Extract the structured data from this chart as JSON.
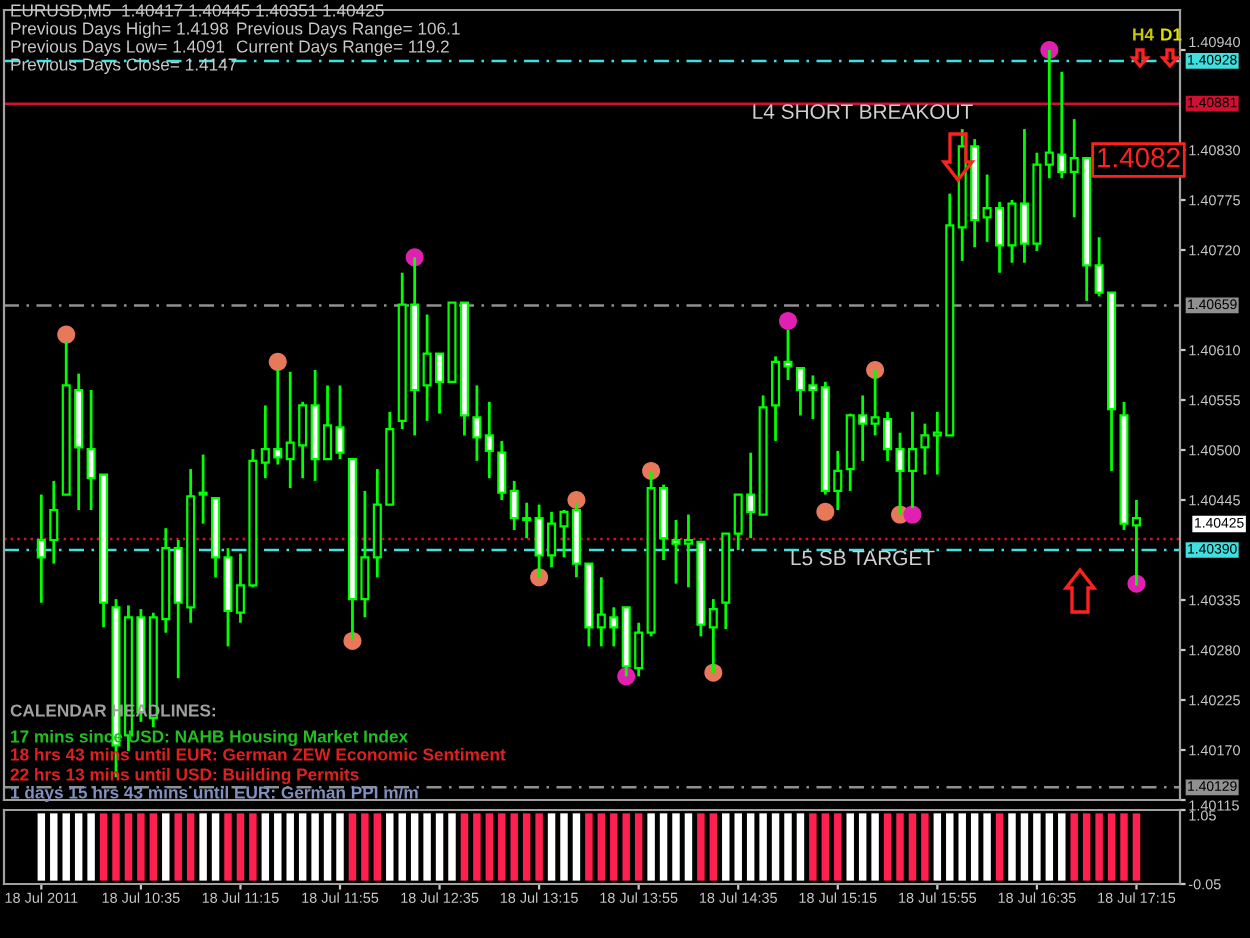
{
  "chart_data": [
    {
      "type": "candlestick",
      "title": "EURUSD,M5  1.40417 1.40445 1.40351 1.40425",
      "categories": [
        null,
        null,
        null,
        null,
        null,
        null,
        null,
        null,
        null,
        null,
        null,
        null,
        null,
        null,
        null,
        null,
        null,
        null,
        null,
        null,
        null,
        null,
        null,
        null,
        null,
        null,
        null,
        null,
        null,
        null,
        null,
        null,
        null,
        null,
        null,
        null,
        null,
        null,
        null,
        null,
        null,
        null,
        null,
        null,
        null,
        null,
        null,
        null,
        null,
        null,
        null,
        null,
        null,
        null,
        null,
        null,
        null,
        null,
        null,
        null,
        null,
        null,
        null,
        null,
        null,
        null,
        null,
        null,
        null,
        null,
        null,
        null,
        null,
        null,
        null,
        null,
        null,
        null,
        null,
        null,
        null,
        null,
        null,
        null,
        null,
        null,
        null,
        null,
        null
      ],
      "series": [
        {
          "type": "candlestick",
          "color": "#00ff00",
          "ohlc": [
            [
              1.40401,
              1.40451,
              1.40332,
              1.40382
            ],
            [
              1.40401,
              1.40466,
              1.40375,
              1.40434
            ],
            [
              1.40451,
              1.40619,
              1.40451,
              1.40571
            ],
            [
              1.40566,
              1.40584,
              1.40434,
              1.40503
            ],
            [
              1.40501,
              1.40566,
              1.40434,
              1.40469
            ],
            [
              1.40473,
              1.40473,
              1.40305,
              1.40332
            ],
            [
              1.40327,
              1.40336,
              1.4014,
              1.40175
            ],
            [
              1.40186,
              1.40329,
              1.40169,
              1.40316
            ],
            [
              1.40316,
              1.40325,
              1.40201,
              1.40212
            ],
            [
              1.40205,
              1.40321,
              1.40195,
              1.40316
            ],
            [
              1.40314,
              1.40414,
              1.40299,
              1.40392
            ],
            [
              1.40392,
              1.40401,
              1.40249,
              1.40332
            ],
            [
              1.40327,
              1.40479,
              1.4031,
              1.40449
            ],
            [
              1.40451,
              1.40495,
              1.40419,
              1.40453
            ],
            [
              1.40447,
              1.40447,
              1.4036,
              1.40382
            ],
            [
              1.40382,
              1.40392,
              1.40284,
              1.40323
            ],
            [
              1.40321,
              1.40386,
              1.4031,
              1.40351
            ],
            [
              1.40351,
              1.40501,
              1.40349,
              1.40488
            ],
            [
              1.40486,
              1.40549,
              1.40469,
              1.40501
            ],
            [
              1.40501,
              1.40588,
              1.40484,
              1.40492
            ],
            [
              1.4049,
              1.40586,
              1.40458,
              1.40508
            ],
            [
              1.40505,
              1.40553,
              1.40469,
              1.40549
            ],
            [
              1.40549,
              1.40588,
              1.40466,
              1.4049
            ],
            [
              1.4049,
              1.40571,
              1.4049,
              1.40527
            ],
            [
              1.40525,
              1.40571,
              1.4049,
              1.40497
            ],
            [
              1.4049,
              1.4049,
              1.40292,
              1.40336
            ],
            [
              1.40336,
              1.40455,
              1.40316,
              1.40382
            ],
            [
              1.40382,
              1.40479,
              1.4036,
              1.4044
            ],
            [
              1.4044,
              1.40542,
              1.4044,
              1.40523
            ],
            [
              1.40532,
              1.40695,
              1.40523,
              1.4066
            ],
            [
              1.4066,
              1.40712,
              1.40516,
              1.40566
            ],
            [
              1.40571,
              1.40649,
              1.40532,
              1.40606
            ],
            [
              1.40606,
              1.40606,
              1.4054,
              1.40575
            ],
            [
              1.40575,
              1.40662,
              1.40575,
              1.40662
            ],
            [
              1.40662,
              1.40662,
              1.40516,
              1.40538
            ],
            [
              1.40536,
              1.40571,
              1.40488,
              1.40514
            ],
            [
              1.40516,
              1.40553,
              1.40469,
              1.40499
            ],
            [
              1.40497,
              1.4051,
              1.40445,
              1.40453
            ],
            [
              1.40455,
              1.40466,
              1.40412,
              1.40425
            ],
            [
              1.40425,
              1.40442,
              1.40403,
              1.40423
            ],
            [
              1.40425,
              1.4044,
              1.4036,
              1.40384
            ],
            [
              1.40384,
              1.40432,
              1.40371,
              1.40419
            ],
            [
              1.40416,
              1.40434,
              1.40382,
              1.40432
            ],
            [
              1.40434,
              1.40442,
              1.4036,
              1.40375
            ],
            [
              1.40375,
              1.40375,
              1.40284,
              1.40305
            ],
            [
              1.40305,
              1.4036,
              1.40284,
              1.40319
            ],
            [
              1.40316,
              1.40327,
              1.40284,
              1.40305
            ],
            [
              1.40327,
              1.40327,
              1.40251,
              1.40262
            ],
            [
              1.4026,
              1.4031,
              1.40251,
              1.40299
            ],
            [
              1.40299,
              1.40477,
              1.40295,
              1.40458
            ],
            [
              1.40458,
              1.40462,
              1.40379,
              1.40403
            ],
            [
              1.40401,
              1.40423,
              1.40353,
              1.40397
            ],
            [
              1.40397,
              1.40429,
              1.40349,
              1.40401
            ],
            [
              1.40399,
              1.40399,
              1.40295,
              1.40308
            ],
            [
              1.40305,
              1.40336,
              1.40255,
              1.40325
            ],
            [
              1.40332,
              1.40408,
              1.40303,
              1.40408
            ],
            [
              1.40408,
              1.40451,
              1.4039,
              1.40451
            ],
            [
              1.40451,
              1.40497,
              1.40403,
              1.40432
            ],
            [
              1.40429,
              1.4056,
              1.40429,
              1.40547
            ],
            [
              1.40549,
              1.40603,
              1.4051,
              1.40597
            ],
            [
              1.40597,
              1.40632,
              1.40577,
              1.40592
            ],
            [
              1.4059,
              1.4059,
              1.40538,
              1.40566
            ],
            [
              1.40571,
              1.40582,
              1.40534,
              1.40566
            ],
            [
              1.40569,
              1.40575,
              1.40451,
              1.40455
            ],
            [
              1.40455,
              1.40499,
              1.40434,
              1.40477
            ],
            [
              1.40479,
              1.4054,
              1.40455,
              1.40538
            ],
            [
              1.40538,
              1.4056,
              1.40488,
              1.40529
            ],
            [
              1.40529,
              1.40588,
              1.40516,
              1.40536
            ],
            [
              1.40534,
              1.40542,
              1.40488,
              1.40501
            ],
            [
              1.40501,
              1.40519,
              1.40429,
              1.40477
            ],
            [
              1.40477,
              1.40542,
              1.40436,
              1.40501
            ],
            [
              1.40503,
              1.40529,
              1.40473,
              1.40516
            ],
            [
              1.40516,
              1.40542,
              1.40473,
              1.40519
            ],
            [
              1.40516,
              1.40782,
              1.40516,
              1.40747
            ],
            [
              1.40745,
              1.40853,
              1.40708,
              1.40834
            ],
            [
              1.40834,
              1.40842,
              1.40723,
              1.40753
            ],
            [
              1.40756,
              1.40803,
              1.40729,
              1.40766
            ],
            [
              1.40766,
              1.40773,
              1.40695,
              1.40725
            ],
            [
              1.40725,
              1.40775,
              1.40706,
              1.40771
            ],
            [
              1.40771,
              1.40853,
              1.40706,
              1.40727
            ],
            [
              1.40727,
              1.40827,
              1.40719,
              1.40814
            ],
            [
              1.40814,
              1.4094,
              1.40799,
              1.40827
            ],
            [
              1.40825,
              1.40916,
              1.40799,
              1.40806
            ],
            [
              1.40806,
              1.40864,
              1.40756,
              1.40821
            ],
            [
              1.40821,
              1.40821,
              1.40664,
              1.40703
            ],
            [
              1.40703,
              1.40734,
              1.40669,
              1.40673
            ],
            [
              1.40673,
              1.40673,
              1.40477,
              1.40545
            ],
            [
              1.40538,
              1.40553,
              1.40412,
              1.40419
            ],
            [
              1.40417,
              1.40445,
              1.40351,
              1.40425
            ]
          ]
        },
        {
          "type": "scatter",
          "color": "#e8785a",
          "marker": "circle",
          "values": [
            null,
            null,
            1.40627,
            null,
            null,
            null,
            null,
            null,
            null,
            null,
            null,
            null,
            null,
            null,
            null,
            null,
            null,
            null,
            null,
            1.40597,
            null,
            null,
            null,
            null,
            null,
            1.4029,
            null,
            null,
            null,
            null,
            null,
            null,
            null,
            null,
            null,
            null,
            null,
            null,
            null,
            null,
            1.4036,
            null,
            null,
            1.40445,
            null,
            null,
            null,
            null,
            null,
            1.40477,
            null,
            null,
            null,
            null,
            1.40255,
            null,
            null,
            null,
            null,
            null,
            null,
            null,
            null,
            1.40432,
            null,
            null,
            null,
            1.40588,
            null,
            1.40429,
            null,
            null,
            null,
            null,
            null,
            null,
            null,
            null,
            null,
            null,
            null,
            null,
            null,
            null,
            null,
            null,
            null,
            null,
            null
          ]
        },
        {
          "type": "scatter",
          "color": "#e020b0",
          "marker": "circle",
          "values": [
            null,
            null,
            null,
            null,
            null,
            null,
            null,
            null,
            null,
            null,
            null,
            null,
            null,
            null,
            null,
            null,
            null,
            null,
            null,
            null,
            null,
            null,
            null,
            null,
            null,
            null,
            null,
            null,
            null,
            null,
            1.40712,
            null,
            null,
            null,
            null,
            null,
            null,
            null,
            null,
            null,
            null,
            null,
            null,
            null,
            null,
            null,
            null,
            1.40251,
            null,
            null,
            null,
            null,
            null,
            null,
            null,
            null,
            null,
            null,
            null,
            null,
            1.40642,
            null,
            null,
            null,
            null,
            null,
            null,
            null,
            null,
            null,
            1.40429,
            null,
            null,
            null,
            null,
            null,
            null,
            null,
            null,
            null,
            null,
            1.4094,
            null,
            null,
            null,
            null,
            null,
            null,
            1.40353
          ]
        }
      ],
      "ylim": [
        1.40115,
        1.40984
      ],
      "yticks": [
        {
          "value": 1.4094,
          "label": "1.40940"
        },
        {
          "value": 1.4083,
          "label": "1.40830"
        },
        {
          "value": 1.40775,
          "label": "1.40775"
        },
        {
          "value": 1.4072,
          "label": "1.40720"
        },
        {
          "value": 1.4061,
          "label": "1.40610"
        },
        {
          "value": 1.40555,
          "label": "1.40555"
        },
        {
          "value": 1.405,
          "label": "1.40500"
        },
        {
          "value": 1.40445,
          "label": "1.40445"
        },
        {
          "value": 1.40335,
          "label": "1.40335"
        },
        {
          "value": 1.4028,
          "label": "1.40280"
        },
        {
          "value": 1.40225,
          "label": "1.40225"
        },
        {
          "value": 1.4017,
          "label": "1.40170"
        },
        {
          "value": 1.40115,
          "label": "1.40115"
        }
      ],
      "grid": false,
      "legend": false,
      "ref_lines": [
        {
          "axis": "y",
          "value": 1.40928,
          "label": "1.40928",
          "color": "#40e0e0",
          "line_style": "dashed"
        },
        {
          "axis": "y",
          "value": 1.40881,
          "label": "1.40881",
          "color": "#d01030",
          "line_style": "solid"
        },
        {
          "axis": "y",
          "value": 1.40659,
          "label": "1.40659",
          "color": "#909090",
          "line_style": "dashed"
        },
        {
          "axis": "y",
          "value": 1.40402,
          "color": "#d01030",
          "line_style": "dotted"
        },
        {
          "axis": "y",
          "value": 1.4039,
          "label": "1.40390",
          "color": "#40e0e0",
          "line_style": "dashed"
        },
        {
          "axis": "y",
          "value": 1.40129,
          "label": "1.40129",
          "color": "#909090",
          "line_style": "dashed"
        }
      ],
      "annotations": [
        "Previous Days High= 1.4198",
        "Previous Days Range= 106.1",
        "Previous Days Low= 1.4091",
        "Current Days Range= 119.2",
        "Previous Days Close= 1.4147",
        "CALENDAR HEADLINES:",
        "17 mins since USD: NAHB Housing Market Index",
        "18 hrs 43 mins until EUR: German ZEW Economic Sentiment",
        "22 hrs 13 mins until USD: Building Permits",
        "1 days 15 hrs 43 mins until EUR: German PPI m/m",
        "H4",
        "D1",
        "1.4082",
        "1.40425",
        {
          "text": "L4 SHORT BREAKOUT",
          "y": 1.40881
        },
        {
          "text": "L5 SB TARGET",
          "y": 1.4039
        }
      ]
    },
    {
      "type": "bar",
      "categories": [
        "18 Jul 2011",
        null,
        null,
        null,
        null,
        null,
        null,
        null,
        "18 Jul 10:35",
        null,
        null,
        null,
        null,
        null,
        null,
        null,
        "18 Jul 11:15",
        null,
        null,
        null,
        null,
        null,
        null,
        null,
        "18 Jul 11:55",
        null,
        null,
        null,
        null,
        null,
        null,
        null,
        "18 Jul 12:35",
        null,
        null,
        null,
        null,
        null,
        null,
        null,
        "18 Jul 13:15",
        null,
        null,
        null,
        null,
        null,
        null,
        null,
        "18 Jul 13:55",
        null,
        null,
        null,
        null,
        null,
        null,
        null,
        "18 Jul 14:35",
        null,
        null,
        null,
        null,
        null,
        null,
        null,
        "18 Jul 15:15",
        null,
        null,
        null,
        null,
        null,
        null,
        null,
        "18 Jul 15:55",
        null,
        null,
        null,
        null,
        null,
        null,
        null,
        "18 Jul 16:35",
        null,
        null,
        null,
        null,
        null,
        null,
        null,
        "18 Jul 17:15"
      ],
      "values": [
        1,
        1,
        1,
        1,
        1,
        1,
        1,
        1,
        1,
        1,
        1,
        1,
        1,
        1,
        1,
        1,
        1,
        1,
        1,
        1,
        1,
        1,
        1,
        1,
        1,
        1,
        1,
        1,
        1,
        1,
        1,
        1,
        1,
        1,
        1,
        1,
        1,
        1,
        1,
        1,
        1,
        1,
        1,
        1,
        1,
        1,
        1,
        1,
        1,
        1,
        1,
        1,
        1,
        1,
        1,
        1,
        1,
        1,
        1,
        1,
        1,
        1,
        1,
        1,
        1,
        1,
        1,
        1,
        1,
        1,
        1,
        1,
        1,
        1,
        1,
        1,
        1,
        1,
        1,
        1,
        1,
        1,
        1,
        1,
        1,
        1,
        1,
        1,
        1
      ],
      "colors": [
        "#ffffff",
        "#ffffff",
        "#ffffff",
        "#ffffff",
        "#ffffff",
        "#ff2050",
        "#ff2050",
        "#ff2050",
        "#ff2050",
        "#ff2050",
        "#ffffff",
        "#ff2050",
        "#ff2050",
        "#ffffff",
        "#ffffff",
        "#ff2050",
        "#ff2050",
        "#ff2050",
        "#ffffff",
        "#ffffff",
        "#ffffff",
        "#ffffff",
        "#ffffff",
        "#ffffff",
        "#ffffff",
        "#ff2050",
        "#ff2050",
        "#ff2050",
        "#ffffff",
        "#ffffff",
        "#ffffff",
        "#ffffff",
        "#ffffff",
        "#ffffff",
        "#ff2050",
        "#ff2050",
        "#ff2050",
        "#ff2050",
        "#ff2050",
        "#ff2050",
        "#ff2050",
        "#ffffff",
        "#ffffff",
        "#ffffff",
        "#ff2050",
        "#ff2050",
        "#ff2050",
        "#ff2050",
        "#ff2050",
        "#ffffff",
        "#ffffff",
        "#ffffff",
        "#ffffff",
        "#ff2050",
        "#ff2050",
        "#ffffff",
        "#ffffff",
        "#ffffff",
        "#ffffff",
        "#ffffff",
        "#ffffff",
        "#ffffff",
        "#ff2050",
        "#ff2050",
        "#ff2050",
        "#ffffff",
        "#ffffff",
        "#ffffff",
        "#ff2050",
        "#ff2050",
        "#ff2050",
        "#ff2050",
        "#ffffff",
        "#ffffff",
        "#ffffff",
        "#ffffff",
        "#ffffff",
        "#ff2050",
        "#ffffff",
        "#ffffff",
        "#ffffff",
        "#ffffff",
        "#ffffff",
        "#ff2050",
        "#ff2050",
        "#ff2050",
        "#ff2050",
        "#ff2050",
        "#ff2050"
      ],
      "ylim": [
        -0.05,
        1.05
      ],
      "yticks": [
        1.05,
        {
          "value": -0.05,
          "label": "-0.05"
        }
      ],
      "grid": false,
      "legend": false
    }
  ]
}
